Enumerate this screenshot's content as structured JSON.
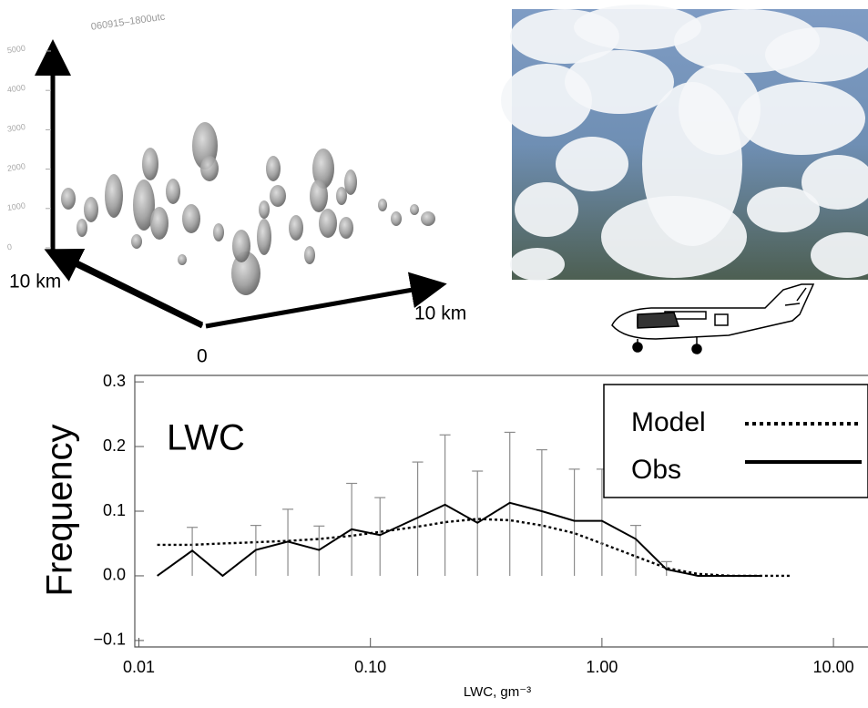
{
  "scene": {
    "timestamp": "060915–1800utc",
    "z_ticks": [
      0,
      1000,
      2000,
      3000,
      4000,
      5000
    ],
    "y_axis_label": "10 km",
    "x_axis_label": "10 km",
    "origin_label": "0"
  },
  "chart_data": {
    "type": "line",
    "annotation": "LWC",
    "y_label": "Frequency",
    "x_label": "LWC, gm⁻³",
    "log_x": true,
    "xlim": [
      0.0096,
      14.1
    ],
    "xticks": [
      0.01,
      {
        "value": 0.1,
        "label": "0.10"
      },
      {
        "value": 1,
        "label": "1.00"
      },
      {
        "value": 10,
        "label": "10.00"
      }
    ],
    "ylim": [
      -0.11,
      0.31
    ],
    "yticks": [
      {
        "value": -0.1,
        "label": "−0.1"
      },
      {
        "value": 0,
        "label": "0.0"
      },
      0.1,
      0.2,
      0.3
    ],
    "x": [
      0.012,
      0.017,
      0.023,
      0.032,
      0.044,
      0.06,
      0.083,
      0.11,
      0.16,
      0.21,
      0.29,
      0.4,
      0.55,
      0.76,
      1.0,
      1.4,
      1.9,
      2.6,
      3.6,
      4.9,
      6.5
    ],
    "legend": "upper right",
    "series": [
      {
        "name": "Model",
        "color": "#000000",
        "style": "dotted",
        "values": [
          0.048,
          0.048,
          0.05,
          0.052,
          0.054,
          0.057,
          0.062,
          0.068,
          0.076,
          0.083,
          0.088,
          0.086,
          0.078,
          0.066,
          0.05,
          0.03,
          0.012,
          0.003,
          0,
          0,
          0
        ]
      },
      {
        "name": "Obs",
        "color": "#000000",
        "style": "solid",
        "error_color": "#8c8c8c",
        "values": [
          0,
          0.039,
          0,
          0.04,
          0.053,
          0.04,
          0.072,
          0.063,
          0.09,
          0.11,
          0.082,
          0.113,
          0.1,
          0.085,
          0.085,
          0.057,
          0.01,
          0,
          0,
          0,
          null
        ],
        "error_high": [
          null,
          0.075,
          null,
          0.078,
          0.103,
          0.077,
          0.143,
          0.121,
          0.176,
          0.218,
          0.162,
          0.222,
          0.195,
          0.165,
          0.165,
          0.078,
          0.022,
          null,
          null,
          null,
          null
        ]
      }
    ]
  }
}
